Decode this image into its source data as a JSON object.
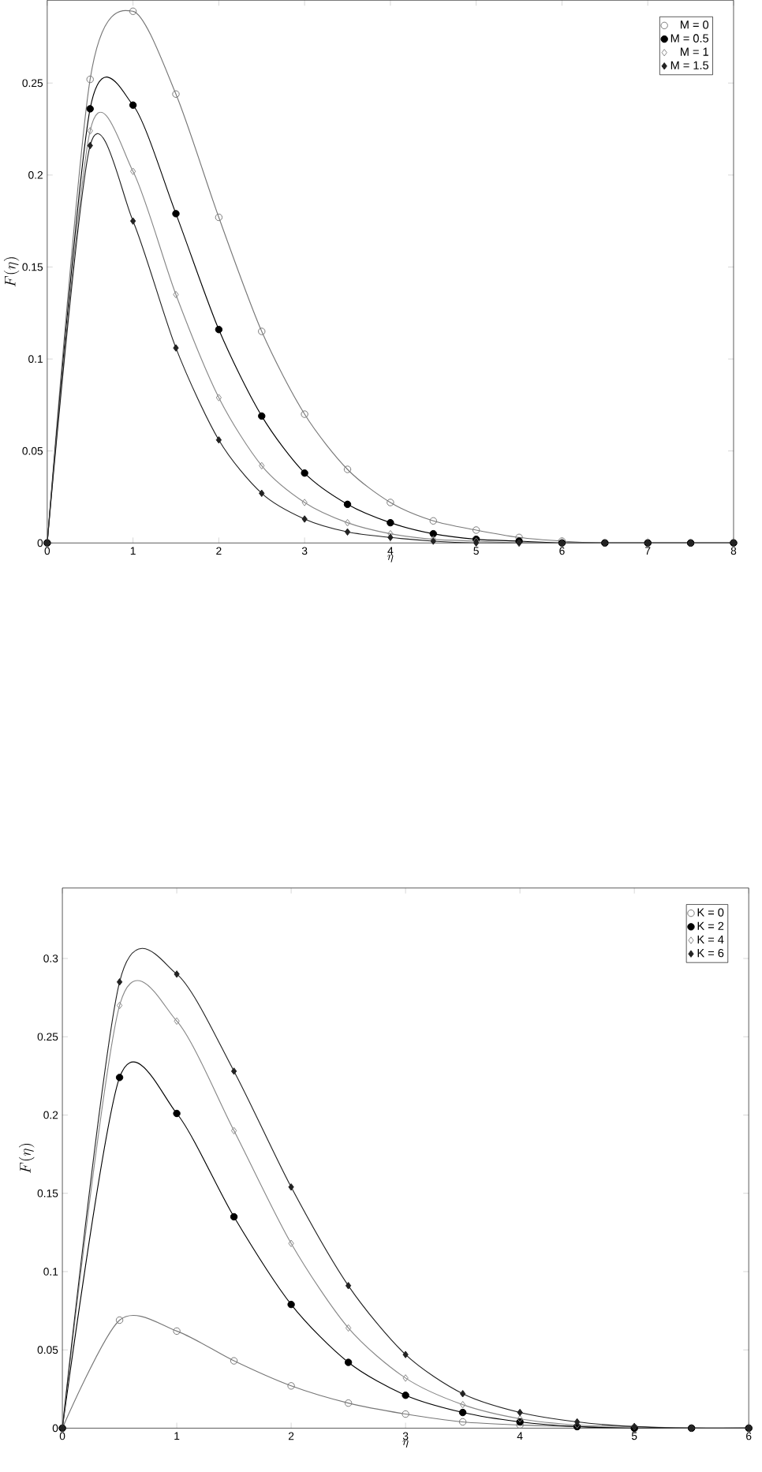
{
  "chart_data": [
    {
      "type": "line",
      "xlabel": "\\eta",
      "ylabel": "F(\\eta)",
      "legend": "top right",
      "grid": false,
      "line_style": "solid",
      "x": [
        0,
        0.5,
        1,
        1.5,
        2,
        2.5,
        3,
        3.5,
        4,
        4.5,
        5,
        5.5,
        6,
        6.5,
        7,
        7.5,
        8
      ],
      "xlim": [
        0,
        8
      ],
      "xticks": [
        0,
        1,
        2,
        3,
        4,
        5,
        6,
        7,
        8
      ],
      "ylim": [
        0,
        0.295
      ],
      "yticks": [
        0,
        0.05,
        0.1,
        0.15,
        0.2,
        0.25
      ],
      "series": [
        {
          "name": "M = 0",
          "color": "#777777",
          "marker": "circle",
          "values": [
            0,
            0.252,
            0.289,
            0.244,
            0.177,
            0.115,
            0.07,
            0.04,
            0.022,
            0.012,
            0.007,
            0.003,
            0.001,
            0,
            0,
            0,
            0
          ]
        },
        {
          "name": "M = 0.5",
          "color": "#000000",
          "marker": "circle",
          "values": [
            0,
            0.236,
            0.238,
            0.179,
            0.116,
            0.069,
            0.038,
            0.021,
            0.011,
            0.005,
            0.002,
            0.001,
            0,
            0,
            0,
            0,
            0
          ]
        },
        {
          "name": "M = 1",
          "color": "#888888",
          "marker": "diamond",
          "values": [
            0,
            0.224,
            0.202,
            0.135,
            0.079,
            0.042,
            0.022,
            0.011,
            0.005,
            0.002,
            0.001,
            0,
            0,
            0,
            0,
            0,
            0
          ]
        },
        {
          "name": "M = 1.5",
          "color": "#222222",
          "marker": "diamond",
          "values": [
            0,
            0.216,
            0.175,
            0.106,
            0.056,
            0.027,
            0.013,
            0.006,
            0.003,
            0.001,
            0,
            0,
            0,
            0,
            0,
            0,
            0
          ]
        }
      ]
    },
    {
      "type": "line",
      "xlabel": "\\eta",
      "ylabel": "F(\\eta)",
      "legend": "top right",
      "grid": false,
      "line_style": "solid",
      "x": [
        0,
        0.5,
        1,
        1.5,
        2,
        2.5,
        3,
        3.5,
        4,
        4.5,
        5,
        5.5,
        6
      ],
      "xlim": [
        0,
        6
      ],
      "xticks": [
        0,
        1,
        2,
        3,
        4,
        5,
        6
      ],
      "ylim": [
        0,
        0.345
      ],
      "yticks": [
        0,
        0.05,
        0.1,
        0.15,
        0.2,
        0.25,
        0.3
      ],
      "series": [
        {
          "name": "K = 0",
          "color": "#777777",
          "marker": "circle",
          "values": [
            0,
            0.069,
            0.062,
            0.043,
            0.027,
            0.016,
            0.009,
            0.004,
            0.002,
            0.001,
            0,
            0,
            0
          ]
        },
        {
          "name": "K = 2",
          "color": "#000000",
          "marker": "circle",
          "values": [
            0,
            0.224,
            0.201,
            0.135,
            0.079,
            0.042,
            0.021,
            0.01,
            0.004,
            0.001,
            0,
            0,
            0
          ]
        },
        {
          "name": "K = 4",
          "color": "#888888",
          "marker": "diamond",
          "values": [
            0,
            0.27,
            0.26,
            0.19,
            0.118,
            0.064,
            0.032,
            0.015,
            0.006,
            0.002,
            0.001,
            0,
            0
          ]
        },
        {
          "name": "K = 6",
          "color": "#222222",
          "marker": "diamond",
          "values": [
            0,
            0.285,
            0.29,
            0.228,
            0.154,
            0.091,
            0.047,
            0.022,
            0.01,
            0.004,
            0.001,
            0,
            0
          ]
        }
      ]
    }
  ]
}
